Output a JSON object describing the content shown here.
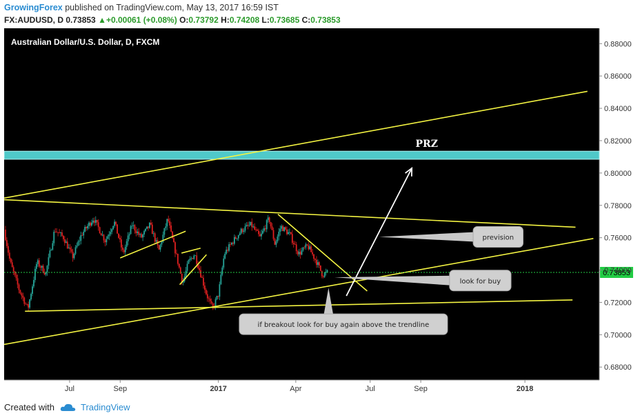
{
  "header": {
    "author": "GrowingForex",
    "published_text": "published on TradingView.com, May 13, 2017 16:59 IST",
    "symbol": "FX:AUDUSD, D",
    "last": "0.73853",
    "change": "+0.00061 (+0.08%)",
    "o_label": "O:",
    "o": "0.73792",
    "h_label": "H:",
    "h": "0.74208",
    "l_label": "L:",
    "l": "0.73685",
    "c_label": "C:",
    "c": "0.73853"
  },
  "footer": {
    "created_with": "Created with",
    "brand": "TradingView"
  },
  "colors": {
    "background": "#000000",
    "up": "#26a69a",
    "down": "#e02020",
    "trend": "#f4f442",
    "zone": "#4fc9c9",
    "price_line": "#22cc44"
  },
  "chart_data": {
    "type": "candlestick",
    "title": "Australian Dollar/U.S. Dollar, D, FXCM",
    "ylim": [
      0.672,
      0.8895
    ],
    "y_ticks": [
      "0.68000",
      "0.70000",
      "0.72000",
      "0.74000",
      "0.76000",
      "0.78000",
      "0.80000",
      "0.82000",
      "0.84000",
      "0.86000",
      "0.88000"
    ],
    "x_ticks": [
      {
        "label": "Jul",
        "t": 0.11
      },
      {
        "label": "Sep",
        "t": 0.195
      },
      {
        "label": "2017",
        "t": 0.36
      },
      {
        "label": "Apr",
        "t": 0.49
      },
      {
        "label": "Jul",
        "t": 0.615
      },
      {
        "label": "Sep",
        "t": 0.7
      },
      {
        "label": "2018",
        "t": 0.875
      }
    ],
    "last_price": "0.73853",
    "prz_label": "PRZ",
    "prz_zone": [
      0.8085,
      0.8135
    ],
    "price_path": [
      [
        0.0,
        0.765
      ],
      [
        0.01,
        0.745
      ],
      [
        0.025,
        0.728
      ],
      [
        0.04,
        0.716
      ],
      [
        0.055,
        0.745
      ],
      [
        0.07,
        0.738
      ],
      [
        0.085,
        0.765
      ],
      [
        0.1,
        0.76
      ],
      [
        0.115,
        0.748
      ],
      [
        0.13,
        0.762
      ],
      [
        0.15,
        0.772
      ],
      [
        0.17,
        0.758
      ],
      [
        0.185,
        0.77
      ],
      [
        0.2,
        0.75
      ],
      [
        0.215,
        0.768
      ],
      [
        0.23,
        0.76
      ],
      [
        0.245,
        0.768
      ],
      [
        0.26,
        0.752
      ],
      [
        0.275,
        0.772
      ],
      [
        0.28,
        0.763
      ],
      [
        0.29,
        0.748
      ],
      [
        0.3,
        0.732
      ],
      [
        0.31,
        0.745
      ],
      [
        0.32,
        0.75
      ],
      [
        0.33,
        0.738
      ],
      [
        0.34,
        0.725
      ],
      [
        0.35,
        0.716
      ],
      [
        0.36,
        0.725
      ],
      [
        0.37,
        0.75
      ],
      [
        0.385,
        0.758
      ],
      [
        0.4,
        0.765
      ],
      [
        0.415,
        0.768
      ],
      [
        0.43,
        0.76
      ],
      [
        0.445,
        0.772
      ],
      [
        0.455,
        0.756
      ],
      [
        0.465,
        0.767
      ],
      [
        0.48,
        0.762
      ],
      [
        0.495,
        0.75
      ],
      [
        0.51,
        0.755
      ],
      [
        0.525,
        0.745
      ],
      [
        0.535,
        0.737
      ],
      [
        0.543,
        0.7385
      ]
    ],
    "trendlines": [
      {
        "from": [
          0.0,
          0.7845
        ],
        "to": [
          0.98,
          0.8505
        ]
      },
      {
        "from": [
          0.0,
          0.7835
        ],
        "to": [
          0.96,
          0.7665
        ]
      },
      {
        "from": [
          0.0,
          0.694
        ],
        "to": [
          0.99,
          0.7595
        ]
      },
      {
        "from": [
          0.035,
          0.7145
        ],
        "to": [
          0.955,
          0.7215
        ]
      },
      {
        "from": [
          0.195,
          0.7475
        ],
        "to": [
          0.305,
          0.764
        ]
      },
      {
        "from": [
          0.295,
          0.731
        ],
        "to": [
          0.34,
          0.7495
        ]
      },
      {
        "from": [
          0.298,
          0.7505
        ],
        "to": [
          0.33,
          0.7535
        ]
      },
      {
        "from": [
          0.46,
          0.7745
        ],
        "to": [
          0.61,
          0.727
        ]
      }
    ],
    "arrow": {
      "from": [
        0.575,
        0.724
      ],
      "to": [
        0.685,
        0.803
      ]
    },
    "annotations": [
      {
        "text": "prevision",
        "at": [
          0.83,
          0.7605
        ],
        "tip": [
          0.63,
          0.7605
        ]
      },
      {
        "text": "look for buy",
        "at": [
          0.8,
          0.7335
        ],
        "tip": [
          0.555,
          0.7355
        ]
      },
      {
        "text": "if breakout look for buy again above the trendline",
        "at": [
          0.57,
          0.7065
        ],
        "tip": [
          0.545,
          0.729
        ]
      }
    ]
  }
}
